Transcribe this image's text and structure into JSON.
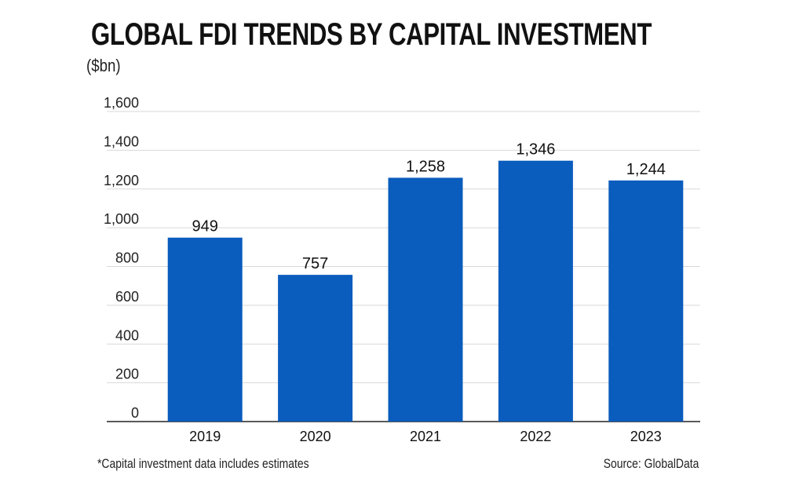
{
  "colors": {
    "bar": "#0a5cbd",
    "grid": "#d9d9d9",
    "axis": "#222222"
  },
  "chart_data": {
    "type": "bar",
    "title": "GLOBAL FDI TRENDS BY CAPITAL INVESTMENT",
    "subtitle": "($bn)",
    "xlabel": "",
    "ylabel": "",
    "categories": [
      "2019",
      "2020",
      "2021",
      "2022",
      "2023"
    ],
    "values": [
      949,
      757,
      1258,
      1346,
      1244
    ],
    "value_labels": [
      "949",
      "757",
      "1,258",
      "1,346",
      "1,244"
    ],
    "ylim": [
      0,
      1600
    ],
    "yticks": [
      0,
      200,
      400,
      600,
      800,
      1000,
      1200,
      1400,
      1600
    ],
    "ytick_labels": [
      "0",
      "200",
      "400",
      "600",
      "800",
      "1,000",
      "1,200",
      "1,400",
      "1,600"
    ],
    "grid": true,
    "footnote": "*Capital investment data includes estimates",
    "source": "Source: GlobalData"
  }
}
